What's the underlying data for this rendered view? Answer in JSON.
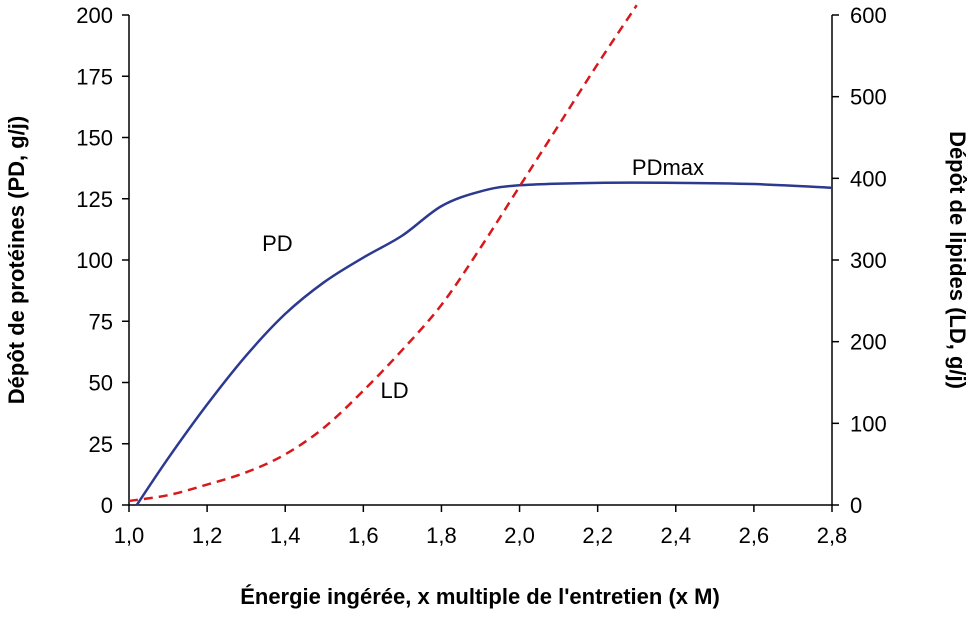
{
  "chart_data": {
    "type": "line",
    "title": "",
    "xlabel": "Énergie ingérée, x multiple de l'entretien (x M)",
    "ylabel_left": "Dépôt de protéines  (PD, g/j)",
    "ylabel_right": "Dépôt de lipides (LD, g/j)",
    "xlim": [
      1.0,
      2.8
    ],
    "ylim_left": [
      0,
      200
    ],
    "ylim_right": [
      0,
      600
    ],
    "x_ticks": [
      "1,0",
      "1,2",
      "1,4",
      "1,6",
      "1,8",
      "2,0",
      "2,2",
      "2,4",
      "2,6",
      "2,8"
    ],
    "x_tick_values": [
      1.0,
      1.2,
      1.4,
      1.6,
      1.8,
      2.0,
      2.2,
      2.4,
      2.6,
      2.8
    ],
    "y_left_ticks": [
      "0",
      "25",
      "50",
      "75",
      "100",
      "125",
      "150",
      "175",
      "200"
    ],
    "y_left_tick_values": [
      0,
      25,
      50,
      75,
      100,
      125,
      150,
      175,
      200
    ],
    "y_right_ticks": [
      "0",
      "100",
      "200",
      "300",
      "400",
      "500",
      "600"
    ],
    "y_right_tick_values": [
      0,
      100,
      200,
      300,
      400,
      500,
      600
    ],
    "grid": false,
    "series": [
      {
        "name": "PD",
        "axis": "left",
        "color": "#2b3990",
        "style": "solid",
        "x": [
          1.02,
          1.1,
          1.2,
          1.3,
          1.4,
          1.5,
          1.6,
          1.7,
          1.8,
          1.9,
          2.0,
          2.2,
          2.4,
          2.6,
          2.8
        ],
        "y": [
          0,
          19,
          41,
          61,
          78,
          91,
          101,
          110,
          122,
          128,
          130.5,
          131.5,
          131.5,
          131,
          129.5
        ]
      },
      {
        "name": "LD",
        "axis": "right",
        "color": "#d7191c",
        "style": "dashed",
        "x": [
          1.0,
          1.1,
          1.2,
          1.3,
          1.4,
          1.5,
          1.6,
          1.7,
          1.8,
          1.9,
          2.0,
          2.1,
          2.2,
          2.3
        ],
        "y": [
          5,
          12,
          25,
          40,
          62,
          95,
          140,
          190,
          245,
          315,
          390,
          465,
          540,
          612
        ]
      }
    ],
    "annotations": [
      {
        "text": "PD",
        "x": 1.38,
        "y_left": 107
      },
      {
        "text": "LD",
        "x": 1.68,
        "y_left": 47
      },
      {
        "text": "PDmax",
        "x": 2.38,
        "y_left": 138
      }
    ]
  }
}
